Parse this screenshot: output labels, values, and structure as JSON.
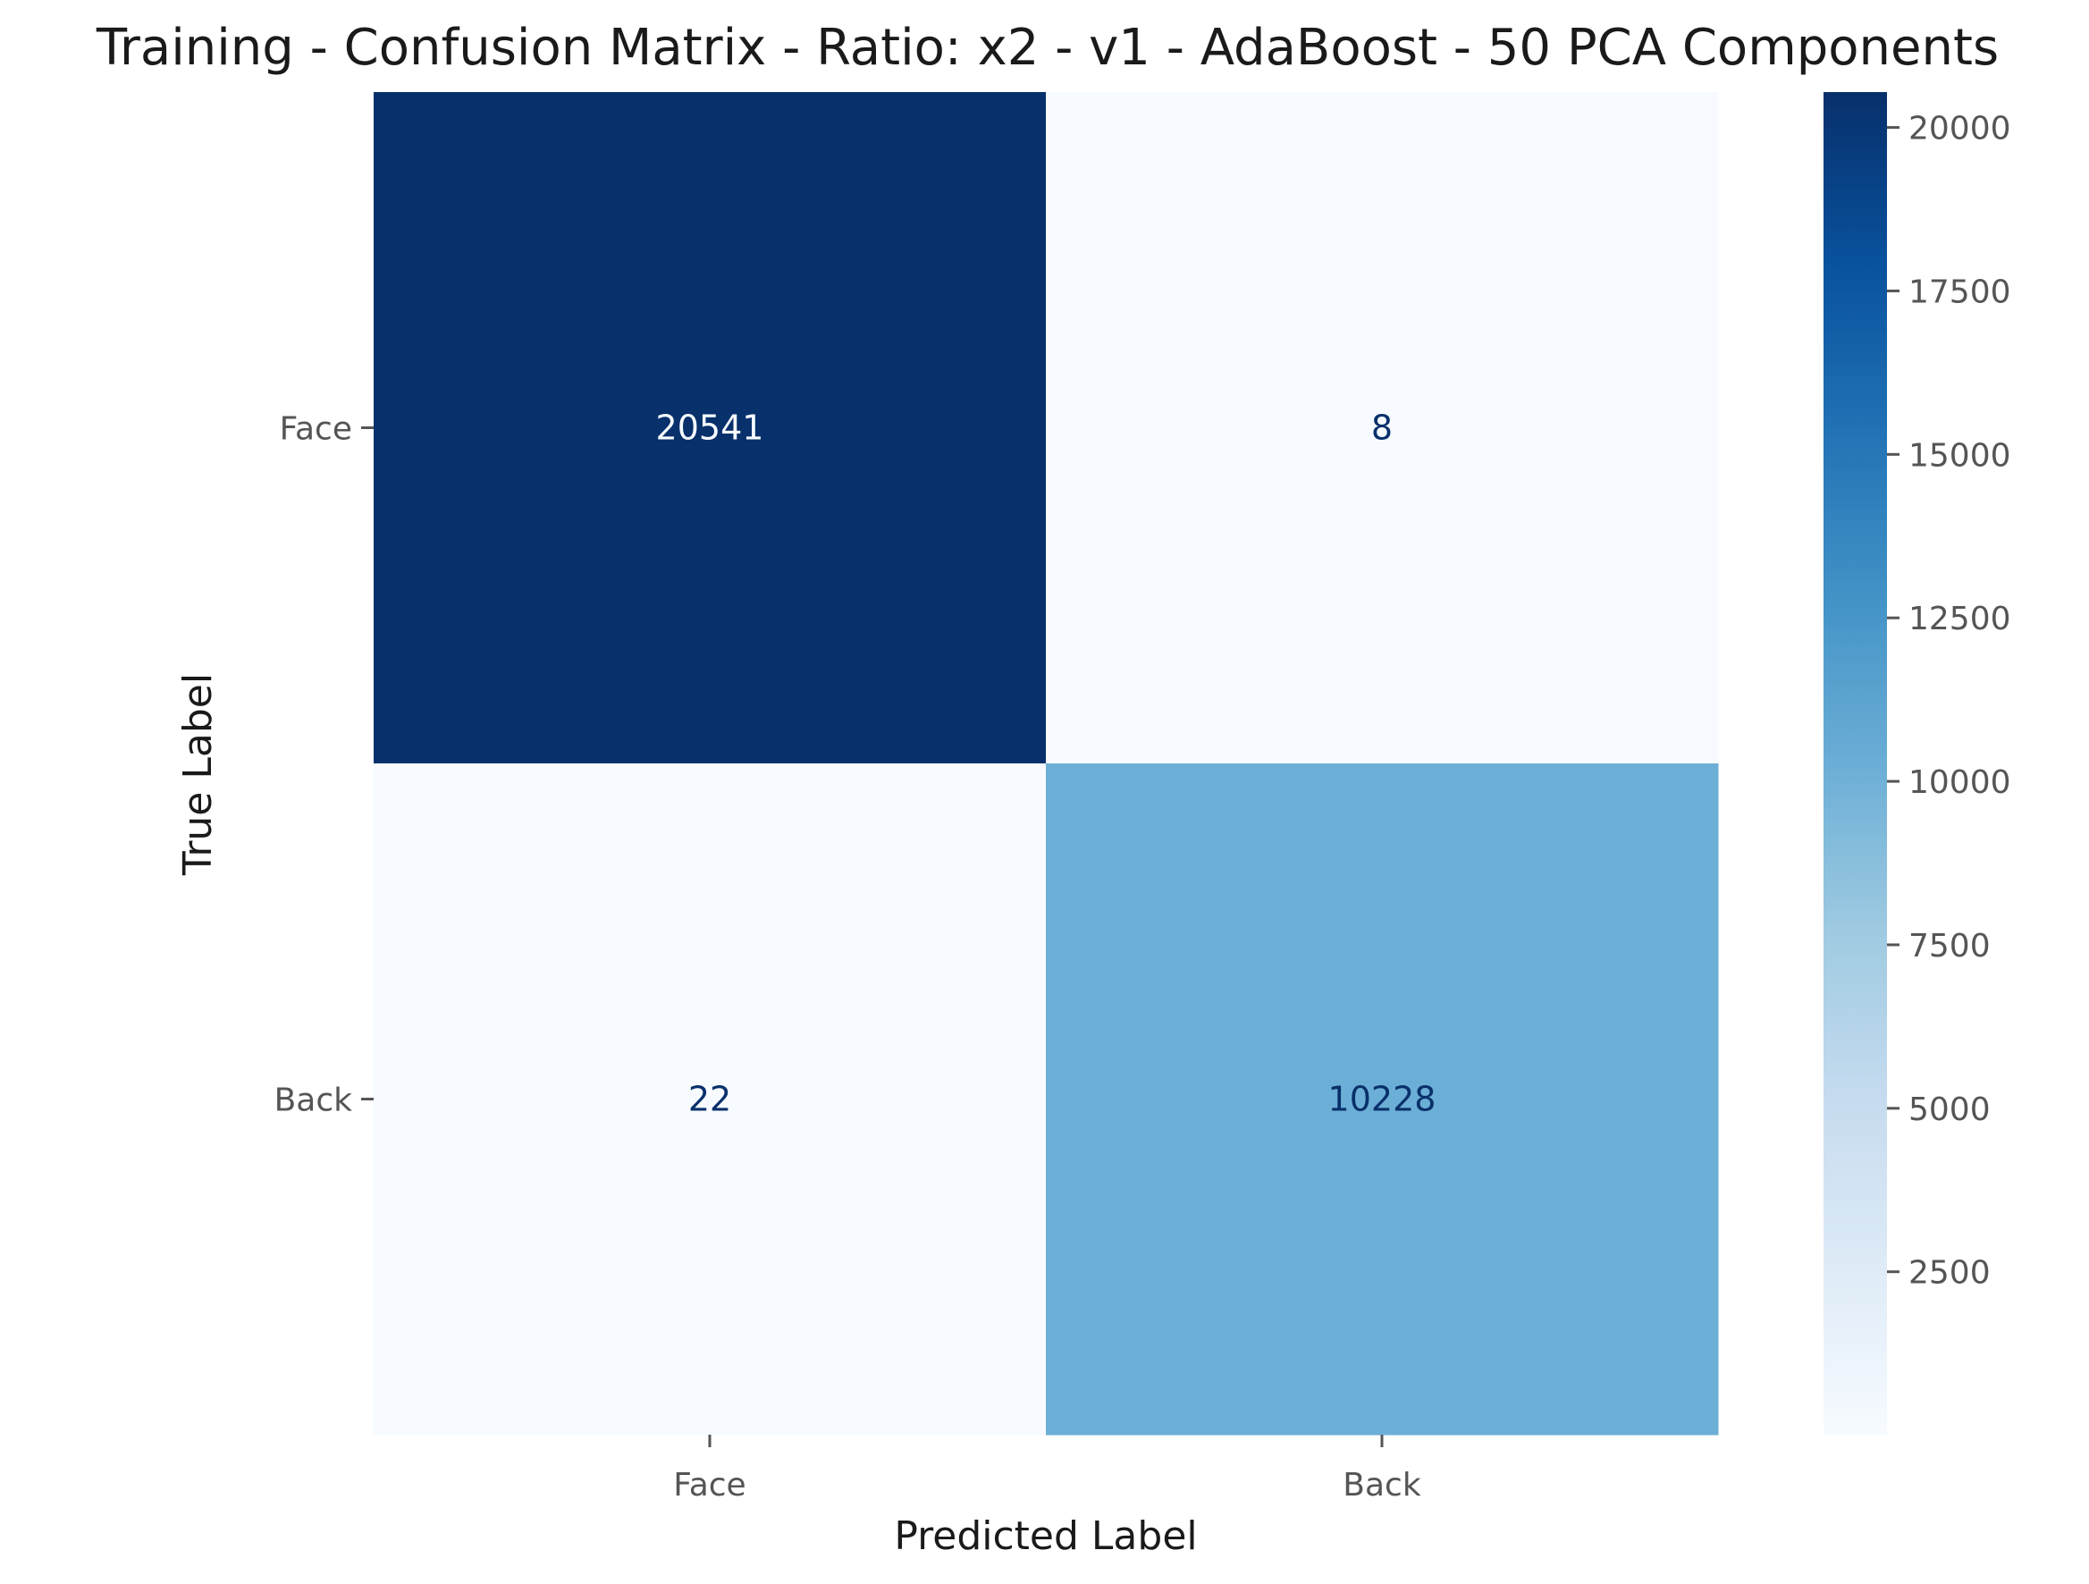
{
  "chart_data": {
    "type": "heatmap",
    "title": "Training - Confusion Matrix - Ratio: x2 - v1 - AdaBoost - 50 PCA Components",
    "xlabel": "Predicted Label",
    "ylabel": "True Label",
    "x_categories": [
      "Face",
      "Back"
    ],
    "y_categories": [
      "Face",
      "Back"
    ],
    "matrix": [
      [
        20541,
        8
      ],
      [
        22,
        10228
      ]
    ],
    "cell_labels": [
      [
        "20541",
        "8"
      ],
      [
        "22",
        "10228"
      ]
    ],
    "colormap": "Blues",
    "colors": {
      "low": "#f7fbff",
      "high": "#08306b",
      "light_text": "#f7fbff",
      "dark_text": "#08306b"
    },
    "colorbar": {
      "vmin": 8,
      "vmax": 20541,
      "ticks": [
        2500,
        5000,
        7500,
        10000,
        12500,
        15000,
        17500,
        20000
      ],
      "tick_labels": [
        "2500",
        "5000",
        "7500",
        "10000",
        "12500",
        "15000",
        "17500",
        "20000"
      ]
    },
    "grid": false
  }
}
